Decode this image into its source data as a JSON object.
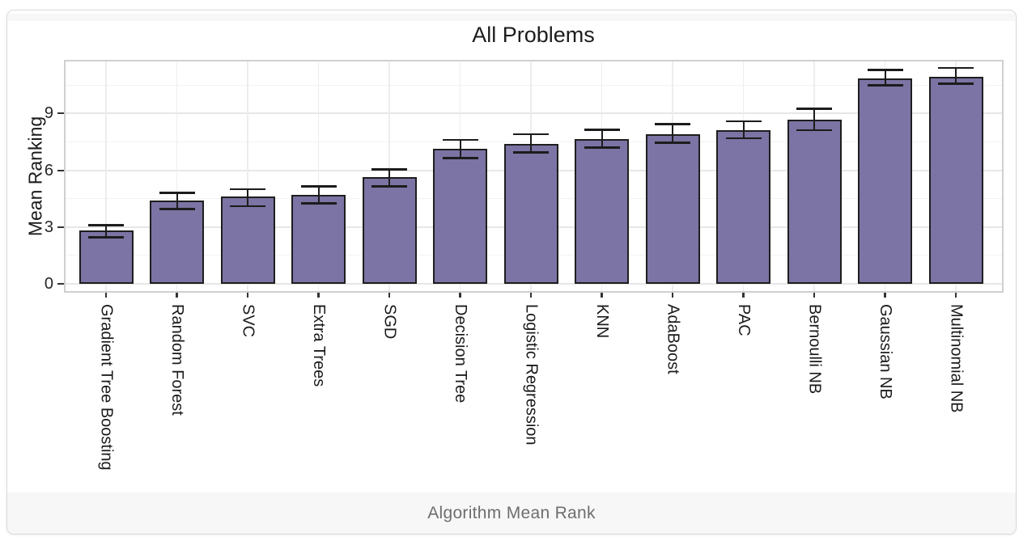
{
  "card": {
    "caption": "Algorithm Mean Rank"
  },
  "chart_data": {
    "type": "bar",
    "title": "All Problems",
    "xlabel": "Algorithm Mean Rank",
    "ylabel": "Mean Ranking",
    "categories": [
      "Gradient Tree Boosting",
      "Random Forest",
      "SVC",
      "Extra Trees",
      "SGD",
      "Decision Tree",
      "Logistic Regression",
      "KNN",
      "AdaBoost",
      "PAC",
      "Bernoulli NB",
      "Gaussian NB",
      "Multinomial NB"
    ],
    "values": [
      2.8,
      4.4,
      4.6,
      4.72,
      5.62,
      7.15,
      7.38,
      7.65,
      7.92,
      8.13,
      8.67,
      10.85,
      10.95
    ],
    "error_low": [
      2.45,
      3.95,
      4.1,
      4.25,
      5.15,
      6.65,
      6.95,
      7.2,
      7.45,
      7.7,
      8.13,
      10.5,
      10.58
    ],
    "error_high": [
      3.1,
      4.8,
      5.0,
      5.15,
      6.05,
      7.6,
      7.9,
      8.15,
      8.45,
      8.58,
      9.25,
      11.3,
      11.4
    ],
    "yticks": [
      0,
      3,
      6,
      9
    ],
    "yticks_minor": [
      1.5,
      4.5,
      7.5,
      10.5
    ],
    "ylim": [
      -0.45,
      11.85
    ],
    "grid": true,
    "legend": "none",
    "colors": {
      "bar_fill": "#7b74a4",
      "bar_edge": "#1e1e1e",
      "error_bar": "#1c1c1c",
      "grid_major": "#e7e7e7",
      "grid_minor": "#f2f2f2",
      "grid_vertical": "#ededed",
      "panel_border": "#d0d0d0",
      "tick_mark": "#333333",
      "caption_bg": "#f7f7f7",
      "caption_text": "#6e6e6e"
    }
  }
}
